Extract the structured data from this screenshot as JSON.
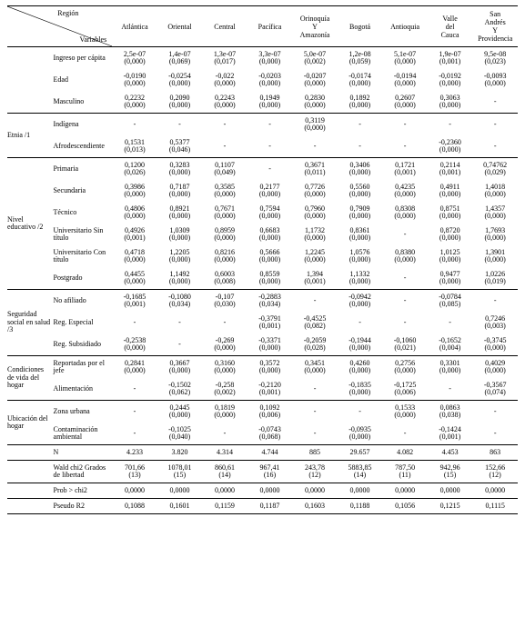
{
  "headers": {
    "region": "Región",
    "variables": "Variables",
    "cols": [
      "Atlántica",
      "Oriental",
      "Central",
      "Pacífica",
      "Orinoquía Y Amazonía",
      "Bogotá",
      "Antioquia",
      "Valle del Cauca",
      "San Andrés Y Providencia"
    ]
  },
  "groups": [
    {
      "label": "",
      "rows": [
        {
          "label": "Ingreso per cápita",
          "cells": [
            [
              "2,5e-07",
              "(0,000)"
            ],
            [
              "1,4e-07",
              "(0,069)"
            ],
            [
              "1,3e-07",
              "(0,017)"
            ],
            [
              "3,3e-07",
              "(0,000)"
            ],
            [
              "5,0e-07",
              "(0,002)"
            ],
            [
              "1,2e-08",
              "(0,059)"
            ],
            [
              "5,1e-07",
              "(0,000)"
            ],
            [
              "1,9e-07",
              "(0,001)"
            ],
            [
              "9,5e-08",
              "(0,023)"
            ]
          ]
        },
        {
          "label": "Edad",
          "cells": [
            [
              "-0,0190",
              "(0,000)"
            ],
            [
              "-0,0254",
              "(0,000)"
            ],
            [
              "-0,022",
              "(0,000)"
            ],
            [
              "-0,0203",
              "(0,000)"
            ],
            [
              "-0,0207",
              "(0,000)"
            ],
            [
              "-0,0174",
              "(0,000)"
            ],
            [
              "-0,0194",
              "(0,000)"
            ],
            [
              "-0,0192",
              "(0,000)"
            ],
            [
              "-0,0093",
              "(0,000)"
            ]
          ]
        },
        {
          "label": "Masculino",
          "cells": [
            [
              "0,2232",
              "(0,000)"
            ],
            [
              "0,2090",
              "(0,000)"
            ],
            [
              "0,2243",
              "(0,000)"
            ],
            [
              "0,1949",
              "(0,000)"
            ],
            [
              "0,2830",
              "(0,000)"
            ],
            [
              "0,1892",
              "(0,000)"
            ],
            [
              "0,2607",
              "(0,000)"
            ],
            [
              "0,3063",
              "(0,000)"
            ],
            [
              "-",
              ""
            ]
          ]
        }
      ],
      "sep": true
    },
    {
      "label": "Etnia /1",
      "rows": [
        {
          "label": "Indígena",
          "cells": [
            [
              "-",
              ""
            ],
            [
              "-",
              ""
            ],
            [
              "-",
              ""
            ],
            [
              "-",
              ""
            ],
            [
              "0,3119",
              "(0,000)"
            ],
            [
              "-",
              ""
            ],
            [
              "-",
              ""
            ],
            [
              "-",
              ""
            ],
            [
              "-",
              ""
            ]
          ]
        },
        {
          "label": "Afrodescendiente",
          "cells": [
            [
              "0,1531",
              "(0,013)"
            ],
            [
              "0,5377",
              "(0,046)"
            ],
            [
              "-",
              ""
            ],
            [
              "-",
              ""
            ],
            [
              "-",
              ""
            ],
            [
              "-",
              ""
            ],
            [
              "-",
              ""
            ],
            [
              "-0,2360",
              "(0,000)"
            ],
            [
              "-",
              ""
            ]
          ]
        }
      ],
      "sep": true
    },
    {
      "label": "Nivel educativo /2",
      "rows": [
        {
          "label": "Primaria",
          "cells": [
            [
              "0,1200",
              "(0,026)"
            ],
            [
              "0,3283",
              "(0,000)"
            ],
            [
              "0,1107",
              "(0,049)"
            ],
            [
              "-",
              ""
            ],
            [
              "0,3671",
              "(0,011)"
            ],
            [
              "0,3406",
              "(0,000)"
            ],
            [
              "0,1721",
              "(0,001)"
            ],
            [
              "0,2114",
              "(0,001)"
            ],
            [
              "0,74762",
              "(0,029)"
            ]
          ]
        },
        {
          "label": "Secundaria",
          "cells": [
            [
              "0,3986",
              "(0,000)"
            ],
            [
              "0,7187",
              "(0,000)"
            ],
            [
              "0,3585",
              "(0,000)"
            ],
            [
              "0,2177",
              "(0,000)"
            ],
            [
              "0,7726",
              "(0,000)"
            ],
            [
              "0,5560",
              "(0,000)"
            ],
            [
              "0,4235",
              "(0,000)"
            ],
            [
              "0,4911",
              "(0,000)"
            ],
            [
              "1,4018",
              "(0,000)"
            ]
          ]
        },
        {
          "label": "Técnico",
          "cells": [
            [
              "0,4806",
              "(0,000)"
            ],
            [
              "0,8921",
              "(0,000)"
            ],
            [
              "0,7671",
              "(0,000)"
            ],
            [
              "0,7594",
              "(0,000)"
            ],
            [
              "0,7960",
              "(0,000)"
            ],
            [
              "0,7909",
              "(0,000)"
            ],
            [
              "0,8308",
              "(0,000)"
            ],
            [
              "0,8751",
              "(0,000)"
            ],
            [
              "1,4357",
              "(0,000)"
            ]
          ]
        },
        {
          "label": "Universitario Sin título",
          "cells": [
            [
              "0,4926",
              "(0,001)"
            ],
            [
              "1,0309",
              "(0,000)"
            ],
            [
              "0,8959",
              "(0,000)"
            ],
            [
              "0,6683",
              "(0,000)"
            ],
            [
              "1,1732",
              "(0,000)"
            ],
            [
              "0,8361",
              "(0,000)"
            ],
            [
              "-",
              ""
            ],
            [
              "0,8720",
              "(0,000)"
            ],
            [
              "1,7693",
              "(0,000)"
            ]
          ]
        },
        {
          "label": "Universitario Con título",
          "cells": [
            [
              "0,4718",
              "(0,000)"
            ],
            [
              "1,2205",
              "(0,000)"
            ],
            [
              "0,8216",
              "(0,000)"
            ],
            [
              "0,5666",
              "(0,000)"
            ],
            [
              "1,2245",
              "(0,000)"
            ],
            [
              "1,0576",
              "(0,000)"
            ],
            [
              "0,8380",
              "(0,000)"
            ],
            [
              "1,0125",
              "(0,000)"
            ],
            [
              "1,3901",
              "(0,000)"
            ]
          ]
        },
        {
          "label": "Postgrado",
          "cells": [
            [
              "0,4455",
              "(0,000)"
            ],
            [
              "1,1492",
              "(0,000)"
            ],
            [
              "0,6003",
              "(0,008)"
            ],
            [
              "0,8559",
              "(0,000)"
            ],
            [
              "1,394",
              "(0,001)"
            ],
            [
              "1,1332",
              "(0,000)"
            ],
            [
              "-",
              ""
            ],
            [
              "0,9477",
              "(0,000)"
            ],
            [
              "1,0226",
              "(0,019)"
            ]
          ]
        }
      ],
      "sep": true
    },
    {
      "label": "Seguridad social en salud /3",
      "rows": [
        {
          "label": "No afiliado",
          "cells": [
            [
              "-0,1685",
              "(0,001)"
            ],
            [
              "-0,1080",
              "(0,034)"
            ],
            [
              "-0,107",
              "(0,030)"
            ],
            [
              "-0,2883",
              "(0,034)"
            ],
            [
              "-",
              ""
            ],
            [
              "-0,0942",
              "(0,000)"
            ],
            [
              "-",
              ""
            ],
            [
              "-0,0784",
              "(0,085)"
            ],
            [
              "-",
              ""
            ]
          ]
        },
        {
          "label": "Reg. Especial",
          "cells": [
            [
              "-",
              ""
            ],
            [
              "-",
              ""
            ],
            [
              "-",
              ""
            ],
            [
              "-0,3791",
              "(0,001)"
            ],
            [
              "-0,4525",
              "(0,082)"
            ],
            [
              "-",
              ""
            ],
            [
              "-",
              ""
            ],
            [
              "-",
              ""
            ],
            [
              "0,7246",
              "(0,003)"
            ]
          ]
        },
        {
          "label": "Reg. Subsidiado",
          "cells": [
            [
              "-0,2538",
              "(0,000)"
            ],
            [
              "-",
              ""
            ],
            [
              "-0,269",
              "(0,000)"
            ],
            [
              "-0,3371",
              "(0,000)"
            ],
            [
              "-0,2059",
              "(0,028)"
            ],
            [
              "-0,1944",
              "(0,000)"
            ],
            [
              "-0,1060",
              "(0,021)"
            ],
            [
              "-0,1652",
              "(0,004)"
            ],
            [
              "-0,3745",
              "(0,000)"
            ]
          ]
        }
      ],
      "sep": true
    },
    {
      "label": "Condiciones de vida del hogar",
      "rows": [
        {
          "label": "Reportadas por el jefe",
          "cells": [
            [
              "0,2841",
              "(0,000)"
            ],
            [
              "0,3667",
              "(0,000)"
            ],
            [
              "0,3160",
              "(0,000)"
            ],
            [
              "0,3572",
              "(0,000)"
            ],
            [
              "0,3451",
              "(0,000)"
            ],
            [
              "0,4260",
              "(0,000)"
            ],
            [
              "0,2756",
              "(0,000)"
            ],
            [
              "0,3301",
              "(0,000)"
            ],
            [
              "0,4029",
              "(0,000)"
            ]
          ]
        },
        {
          "label": "Alimentación",
          "cells": [
            [
              "-",
              ""
            ],
            [
              "-0,1502",
              "(0,062)"
            ],
            [
              "-0,258",
              "(0,002)"
            ],
            [
              "-0,2120",
              "(0,001)"
            ],
            [
              "-",
              ""
            ],
            [
              "-0,1835",
              "(0,000)"
            ],
            [
              "-0,1725",
              "(0,006)"
            ],
            [
              "-",
              ""
            ],
            [
              "-0,3567",
              "(0,074)"
            ]
          ]
        }
      ],
      "sep": true
    },
    {
      "label": "Ubicación del hogar",
      "rows": [
        {
          "label": "Zona urbana",
          "cells": [
            [
              "-",
              ""
            ],
            [
              "0,2445",
              "(0,000)"
            ],
            [
              "0,1819",
              "(0,000)"
            ],
            [
              "0,1092",
              "(0,006)"
            ],
            [
              "-",
              ""
            ],
            [
              "-",
              ""
            ],
            [
              "0,1533",
              "(0,000)"
            ],
            [
              "0,0863",
              "(0,038)"
            ],
            [
              "-",
              ""
            ]
          ]
        },
        {
          "label": "Contaminación ambiental",
          "cells": [
            [
              "-",
              ""
            ],
            [
              "-0,1025",
              "(0,040)"
            ],
            [
              "-",
              ""
            ],
            [
              "-0,0743",
              "(0,068)"
            ],
            [
              "-",
              ""
            ],
            [
              "-0,0935",
              "(0,000)"
            ],
            [
              "-",
              ""
            ],
            [
              "-0,1424",
              "(0,001)"
            ],
            [
              "-",
              ""
            ]
          ]
        }
      ],
      "sep": true
    },
    {
      "label": "",
      "rows": [
        {
          "label": "N",
          "single": true,
          "cells": [
            [
              "4.233",
              ""
            ],
            [
              "3.820",
              ""
            ],
            [
              "4.314",
              ""
            ],
            [
              "4.744",
              ""
            ],
            [
              "885",
              ""
            ],
            [
              "29.657",
              ""
            ],
            [
              "4.082",
              ""
            ],
            [
              "4.453",
              ""
            ],
            [
              "863",
              ""
            ]
          ]
        }
      ],
      "sep": true
    },
    {
      "label": "",
      "rows": [
        {
          "label": "Wald chi2 Grados de libertad",
          "cells": [
            [
              "701,66",
              "(13)"
            ],
            [
              "1078,01",
              "(15)"
            ],
            [
              "860,61",
              "(14)"
            ],
            [
              "967,41",
              "(16)"
            ],
            [
              "243,78",
              "(12)"
            ],
            [
              "5883,85",
              "(14)"
            ],
            [
              "787,50",
              "(11)"
            ],
            [
              "942,96",
              "(15)"
            ],
            [
              "152,66",
              "(12)"
            ]
          ]
        }
      ],
      "sep": true
    },
    {
      "label": "",
      "rows": [
        {
          "label": "Prob > chi2",
          "single": true,
          "cells": [
            [
              "0,0000",
              ""
            ],
            [
              "0,0000",
              ""
            ],
            [
              "0,0000",
              ""
            ],
            [
              "0,0000",
              ""
            ],
            [
              "0,0000",
              ""
            ],
            [
              "0,0000",
              ""
            ],
            [
              "0,0000",
              ""
            ],
            [
              "0,0000",
              ""
            ],
            [
              "0,0000",
              ""
            ]
          ]
        }
      ],
      "sep": true
    },
    {
      "label": "",
      "rows": [
        {
          "label": "Pseudo R2",
          "single": true,
          "cells": [
            [
              "0,1088",
              ""
            ],
            [
              "0,1601",
              ""
            ],
            [
              "0,1159",
              ""
            ],
            [
              "0,1187",
              ""
            ],
            [
              "0,1603",
              ""
            ],
            [
              "0,1188",
              ""
            ],
            [
              "0,1056",
              ""
            ],
            [
              "0,1215",
              ""
            ],
            [
              "0,1115",
              ""
            ]
          ]
        }
      ],
      "sep": true
    }
  ]
}
